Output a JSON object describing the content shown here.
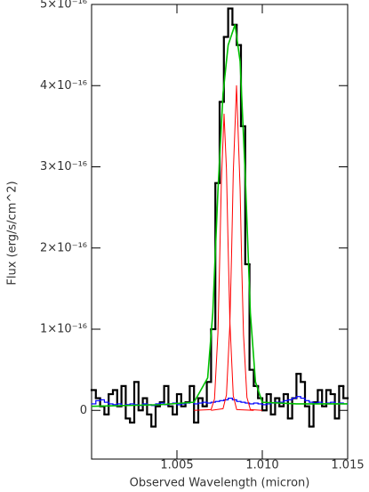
{
  "chart_data": {
    "type": "line",
    "x_label": "Observed Wavelength (micron)",
    "y_label": "Flux (erg/s/cm^2)",
    "xlim": [
      1.0,
      1.015
    ],
    "ylim": [
      -6e-17,
      5e-16
    ],
    "xticks": [
      1.005,
      {
        "value": 1.01,
        "label": "1.010"
      },
      1.015
    ],
    "yticks": [
      0,
      {
        "value": 1e-16,
        "label": "1×10⁻¹⁶"
      },
      {
        "value": 2e-16,
        "label": "2×10⁻¹⁶"
      },
      {
        "value": 3e-16,
        "label": "3×10⁻¹⁶"
      },
      {
        "value": 4e-16,
        "label": "4×10⁻¹⁶"
      },
      {
        "value": 5e-16,
        "label": "5×10⁻¹⁶"
      }
    ],
    "series": [
      {
        "color": "#000000",
        "step": true,
        "width": 2.2,
        "x": [
          1.000125,
          1.000375,
          1.000625,
          1.000875,
          1.001125,
          1.001375,
          1.001625,
          1.001875,
          1.002125,
          1.002375,
          1.002625,
          1.002875,
          1.003125,
          1.003375,
          1.003625,
          1.003875,
          1.004125,
          1.004375,
          1.004625,
          1.004875,
          1.005125,
          1.005375,
          1.005625,
          1.005875,
          1.006125,
          1.006375,
          1.006625,
          1.006875,
          1.007125,
          1.007375,
          1.007625,
          1.007875,
          1.008125,
          1.008375,
          1.008625,
          1.008875,
          1.009125,
          1.009375,
          1.009625,
          1.009875,
          1.010125,
          1.010375,
          1.010625,
          1.010875,
          1.011125,
          1.011375,
          1.011625,
          1.011875,
          1.012125,
          1.012375,
          1.012625,
          1.012875,
          1.013125,
          1.013375,
          1.013625,
          1.013875,
          1.014125,
          1.014375,
          1.014625,
          1.014875
        ],
        "values": [
          2.5e-17,
          1.5e-17,
          5e-18,
          -5e-18,
          2e-17,
          2.5e-17,
          5e-18,
          3e-17,
          -1e-17,
          -1.5e-17,
          3.5e-17,
          0,
          1.5e-17,
          -5e-18,
          -2e-17,
          5e-18,
          1e-17,
          3e-17,
          5e-18,
          -5e-18,
          2e-17,
          5e-18,
          1e-17,
          3e-17,
          -1.5e-17,
          1.5e-17,
          5e-18,
          3.5e-17,
          1e-16,
          2.8e-16,
          3.8e-16,
          4.6e-16,
          4.95e-16,
          4.75e-16,
          4.5e-16,
          3.5e-16,
          1.8e-16,
          5e-17,
          3e-17,
          1.5e-17,
          0,
          2e-17,
          -5e-18,
          1.5e-17,
          5e-18,
          2e-17,
          -1e-17,
          1.5e-17,
          4.5e-17,
          3.5e-17,
          5e-18,
          -2e-17,
          1e-17,
          2.5e-17,
          5e-18,
          2.5e-17,
          2e-17,
          -1e-17,
          3e-17,
          1.5e-17
        ]
      },
      {
        "color": "#0000ff",
        "step": true,
        "width": 1.2,
        "x": [
          1.000125,
          1.000375,
          1.000625,
          1.000875,
          1.001125,
          1.001375,
          1.001625,
          1.001875,
          1.002125,
          1.002375,
          1.002625,
          1.002875,
          1.003125,
          1.003375,
          1.003625,
          1.003875,
          1.004125,
          1.004375,
          1.004625,
          1.004875,
          1.005125,
          1.005375,
          1.005625,
          1.005875,
          1.006125,
          1.006375,
          1.006625,
          1.006875,
          1.007125,
          1.007375,
          1.007625,
          1.007875,
          1.008125,
          1.008375,
          1.008625,
          1.008875,
          1.009125,
          1.009375,
          1.009625,
          1.009875,
          1.010125,
          1.010375,
          1.010625,
          1.010875,
          1.011125,
          1.011375,
          1.011625,
          1.011875,
          1.012125,
          1.012375,
          1.012625,
          1.012875,
          1.013125,
          1.013375,
          1.013625,
          1.013875,
          1.014125,
          1.014375,
          1.014625,
          1.014875
        ],
        "values": [
          8e-18,
          1.2e-17,
          1.3e-17,
          1e-17,
          8e-18,
          7e-18,
          8e-18,
          6e-18,
          7e-18,
          8e-18,
          7e-18,
          6e-18,
          8e-18,
          7e-18,
          6e-18,
          8e-18,
          9e-18,
          7e-18,
          8e-18,
          9e-18,
          7e-18,
          8e-18,
          9e-18,
          1e-17,
          8e-18,
          9e-18,
          1e-17,
          9e-18,
          1e-17,
          1.1e-17,
          1.2e-17,
          1.3e-17,
          1.5e-17,
          1.3e-17,
          1.1e-17,
          1e-17,
          9e-18,
          8e-18,
          9e-18,
          8e-18,
          7e-18,
          8e-18,
          9e-18,
          1e-17,
          1e-17,
          1.2e-17,
          1.3e-17,
          1.5e-17,
          1.7e-17,
          1.5e-17,
          1.2e-17,
          1e-17,
          9e-18,
          1e-17,
          8e-18,
          9e-18,
          1e-17,
          8e-18,
          9e-18,
          8e-18
        ]
      },
      {
        "color": "#ff0000",
        "step": false,
        "width": 1,
        "x": [
          1.006,
          1.007,
          1.0072,
          1.0074,
          1.0075,
          1.0076,
          1.00776,
          1.0079,
          1.008,
          1.0081,
          1.0083,
          1.0085,
          1.0095
        ],
        "values": [
          0,
          1e-18,
          1.4e-17,
          9.5e-17,
          1.82e-16,
          2.8e-16,
          3.65e-16,
          2.97e-16,
          2e-16,
          1.1e-16,
          1.8e-17,
          1e-18,
          0
        ]
      },
      {
        "color": "#ff0000",
        "step": false,
        "width": 1,
        "x": [
          1.007,
          1.0077,
          1.0079,
          1.0081,
          1.0082,
          1.0083,
          1.00849,
          1.0087,
          1.0088,
          1.0089,
          1.0091,
          1.0093,
          1.01
        ],
        "values": [
          0,
          2e-18,
          1.9e-17,
          1.06e-16,
          1.92e-16,
          2.93e-16,
          4e-16,
          2.73e-16,
          1.74e-16,
          9.3e-17,
          1.6e-17,
          1e-18,
          0
        ]
      },
      {
        "color": "#00c000",
        "step": false,
        "width": 1.6,
        "x": [
          1.0,
          1.004,
          1.006,
          1.0068,
          1.0071,
          1.0074,
          1.0077,
          1.008,
          1.0084,
          1.0087,
          1.009,
          1.0093,
          1.0096,
          1.01,
          1.012,
          1.015
        ],
        "values": [
          5e-18,
          7e-18,
          1e-17,
          4e-17,
          1.2e-16,
          2.7e-16,
          3.9e-16,
          4.5e-16,
          4.75e-16,
          4.3e-16,
          2.9e-16,
          1.2e-16,
          3.5e-17,
          1e-17,
          8e-18,
          8e-18
        ]
      }
    ]
  }
}
